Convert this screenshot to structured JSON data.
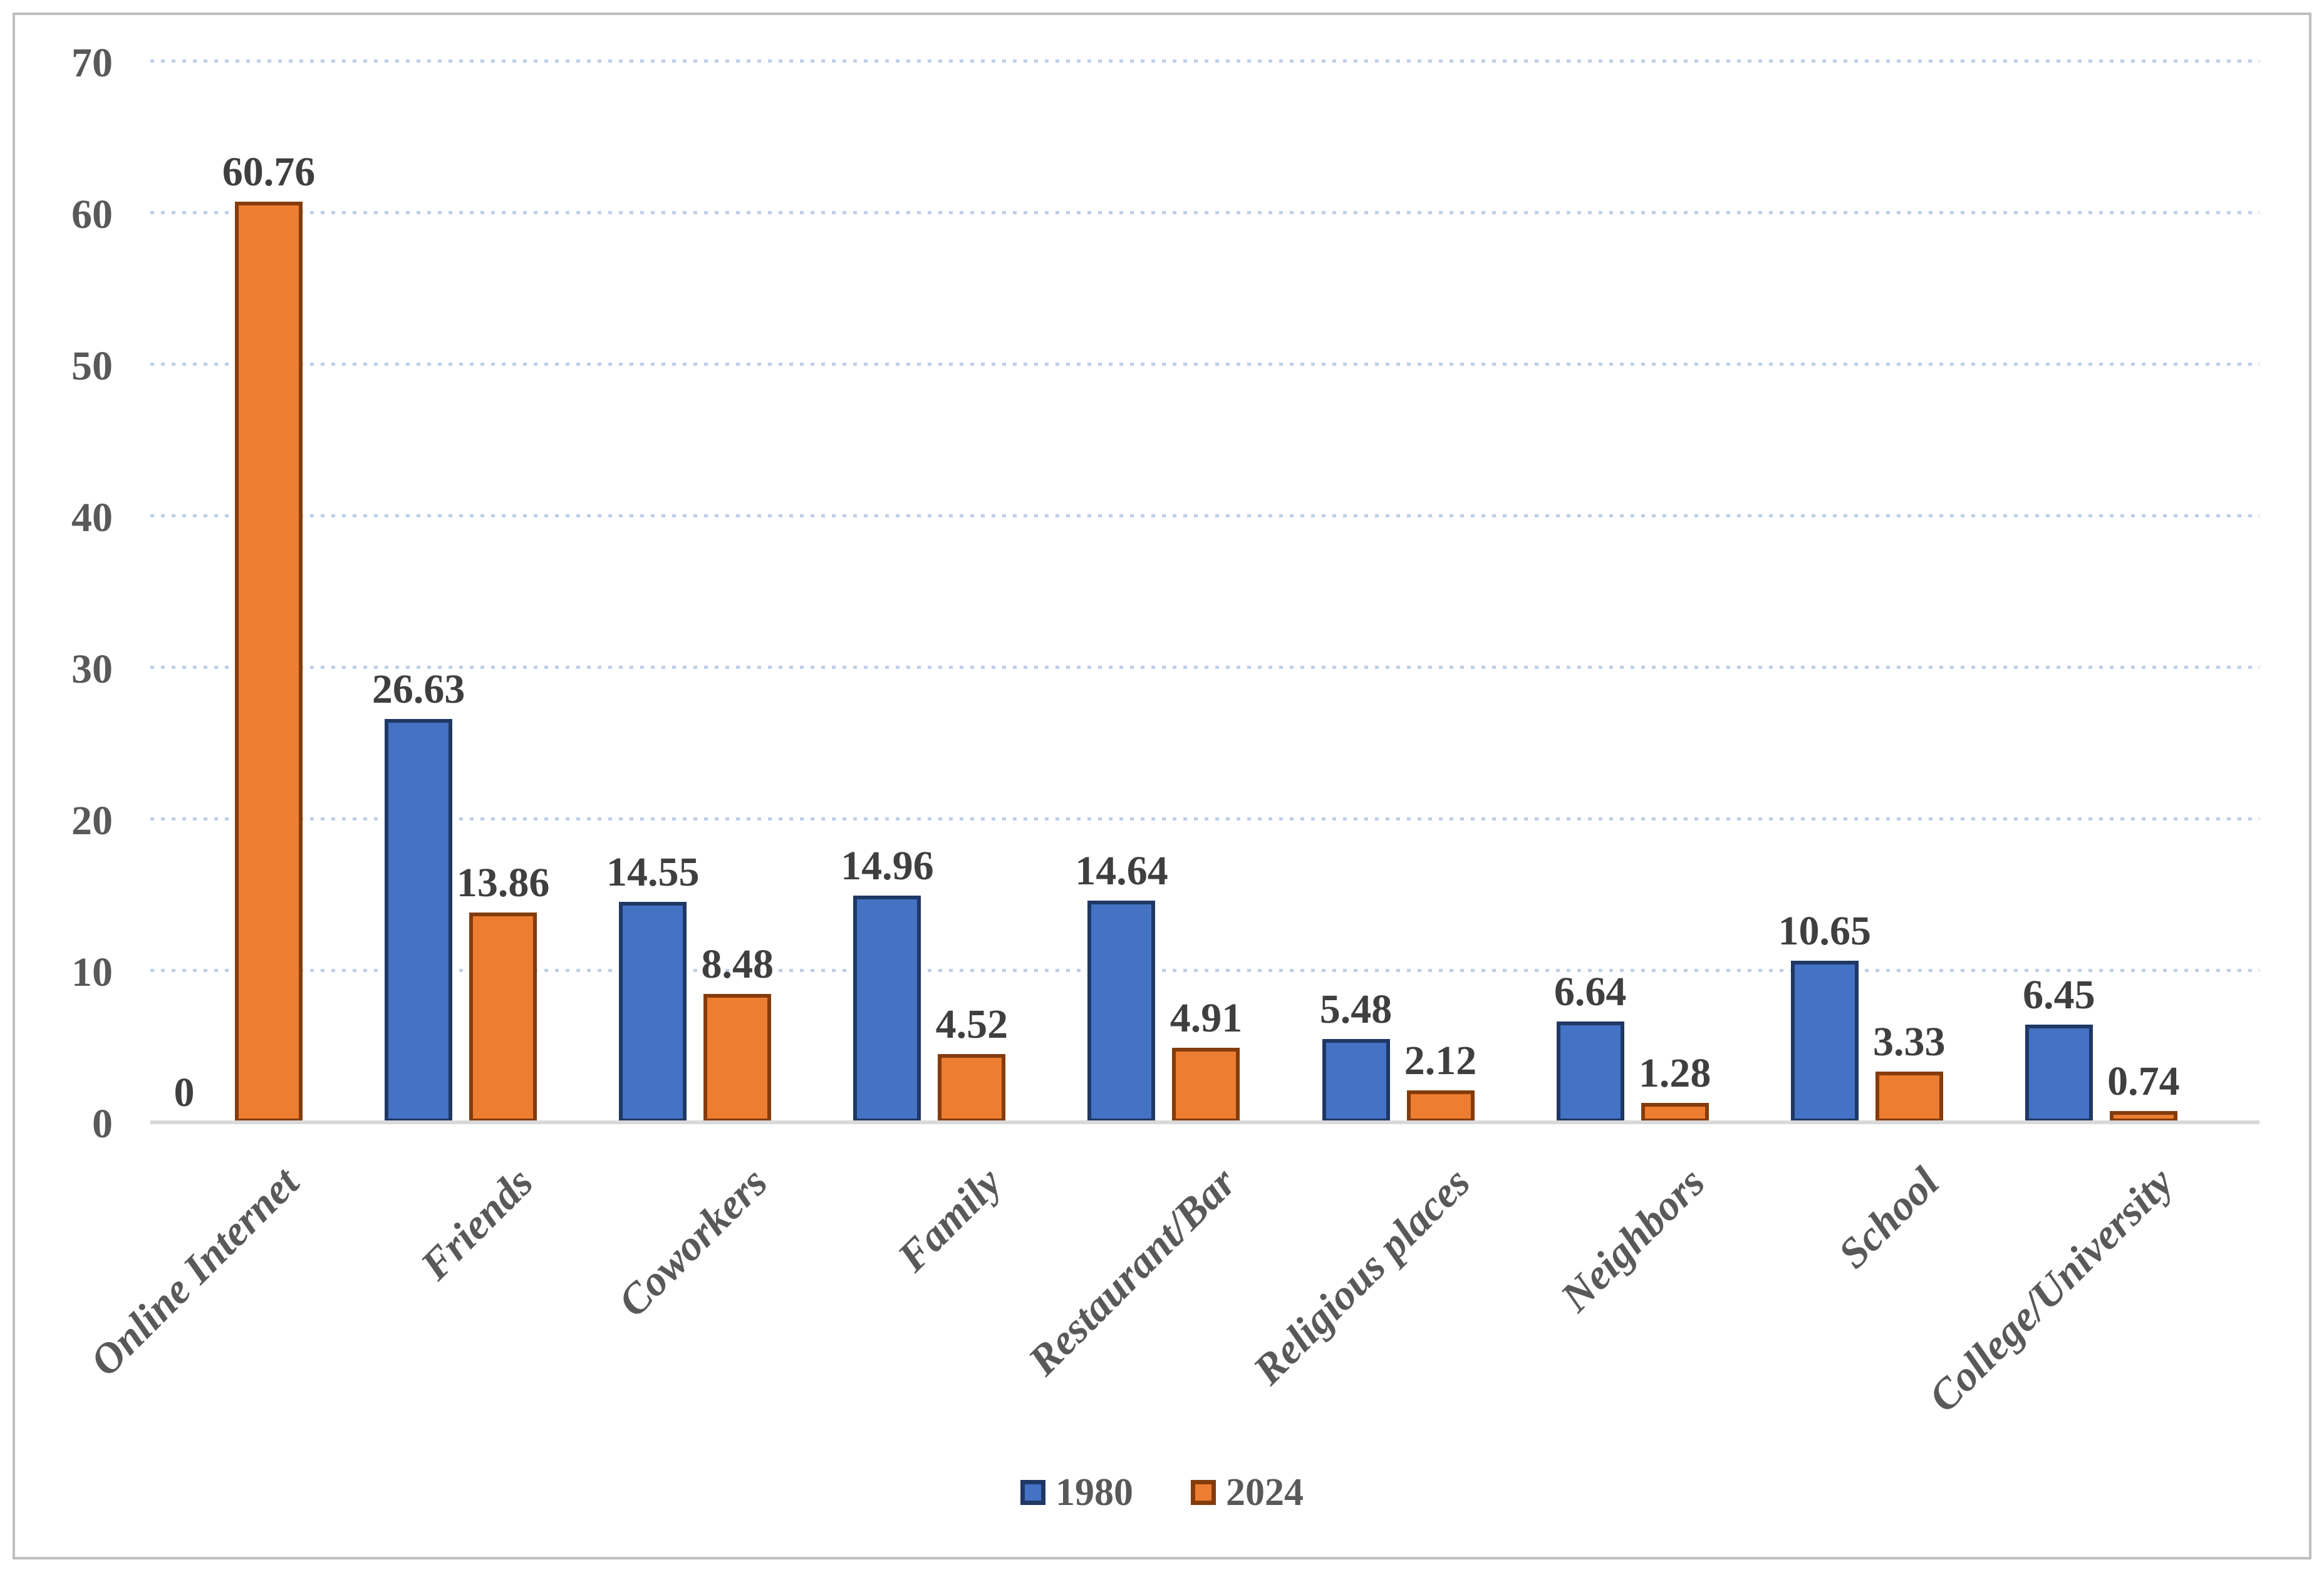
{
  "chart_data": {
    "type": "bar",
    "title": "",
    "xlabel": "",
    "ylabel": "",
    "categories": [
      "Online Internet",
      "Friends",
      "Coworkers",
      "Family",
      "Restaurant/Bar",
      "Religious places",
      "Neighbors",
      "School",
      "College/University"
    ],
    "series": [
      {
        "name": "1980",
        "fill_color": "#4472C4",
        "border_color": "#1F3864",
        "values": [
          0,
          26.63,
          14.55,
          14.96,
          14.64,
          5.48,
          6.64,
          10.65,
          6.45
        ],
        "value_labels": [
          "0",
          "26.63",
          "14.55",
          "14.96",
          "14.64",
          "5.48",
          "6.64",
          "10.65",
          "6.45"
        ]
      },
      {
        "name": "2024",
        "fill_color": "#ED7D31",
        "border_color": "#843C0C",
        "values": [
          60.76,
          13.86,
          8.48,
          4.52,
          4.91,
          2.12,
          1.28,
          3.33,
          0.74
        ],
        "value_labels": [
          "60.76",
          "13.86",
          "8.48",
          "4.52",
          "4.91",
          "2.12",
          "1.28",
          "3.33",
          "0.74"
        ]
      }
    ],
    "ylim": [
      0,
      70
    ],
    "yticks": [
      0,
      10,
      20,
      30,
      40,
      50,
      60,
      70
    ],
    "grid": "horizontal-dotted",
    "gridline_color": "#BDCFEA",
    "axis_line_color": "#D9D9D9",
    "tick_label_color": "#595959",
    "value_label_color": "#3F3F3F",
    "category_label_color": "#595959",
    "frame_color": "#BFBFBF",
    "legend_position": "bottom-center",
    "data_labels_shown": true
  },
  "legend": {
    "items": [
      {
        "label": "1980"
      },
      {
        "label": "2024"
      }
    ]
  }
}
